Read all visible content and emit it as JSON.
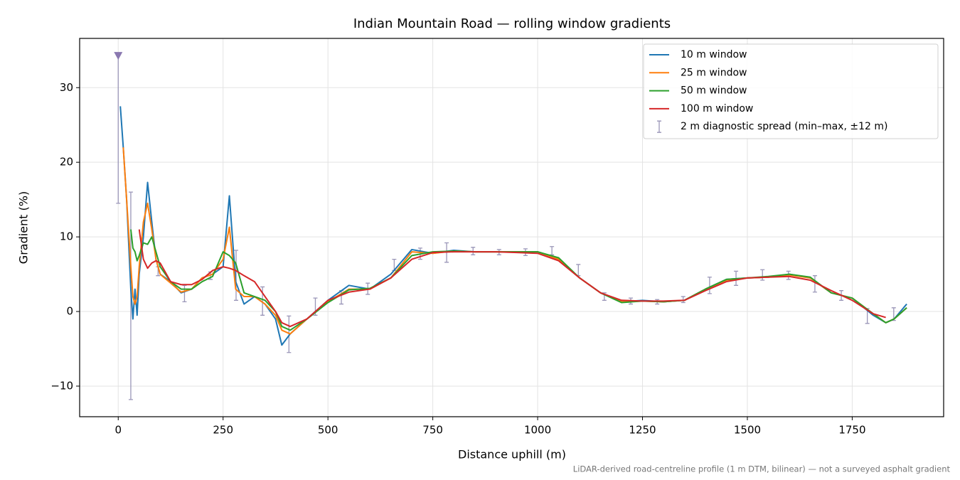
{
  "chart_data": {
    "type": "line",
    "title": "Indian Mountain Road — rolling window gradients",
    "x_label": "Distance uphill (m)",
    "y_label": "Gradient (%)",
    "footnote": "LiDAR-derived road-centreline profile (1 m DTM, bilinear) — not a surveyed asphalt gradient",
    "xlim": [
      -92,
      1968
    ],
    "ylim": [
      -14.1,
      36.6
    ],
    "xticks": [
      0,
      250,
      500,
      750,
      1000,
      1250,
      1500,
      1750
    ],
    "yticks": [
      {
        "value": -10,
        "label": "−10"
      },
      0,
      10,
      20,
      30
    ],
    "grid": true,
    "legend": "upper right",
    "x": [
      5,
      12,
      20,
      30,
      35,
      40,
      45,
      50,
      60,
      70,
      80,
      90,
      100,
      125,
      150,
      175,
      200,
      225,
      250,
      265,
      280,
      300,
      325,
      350,
      375,
      390,
      410,
      450,
      500,
      550,
      600,
      650,
      700,
      750,
      800,
      850,
      900,
      950,
      1000,
      1050,
      1100,
      1150,
      1200,
      1250,
      1300,
      1350,
      1400,
      1450,
      1500,
      1550,
      1600,
      1650,
      1700,
      1750,
      1800,
      1830,
      1850,
      1880
    ],
    "series": [
      {
        "name": "10 m window",
        "color": "#1f77b4",
        "values": [
          27.5,
          22,
          15,
          3,
          -1,
          3,
          -0.5,
          5,
          10,
          17.3,
          12,
          7,
          5,
          4,
          2.5,
          3,
          4.5,
          5,
          6,
          15.5,
          4,
          1,
          2,
          1,
          -1,
          -4.5,
          -3,
          -1,
          1.5,
          3.5,
          3,
          5,
          8.3,
          7.8,
          8.2,
          8,
          8,
          8,
          8,
          7,
          4.5,
          2.5,
          1.3,
          1.5,
          1.3,
          1.5,
          3,
          4.3,
          4.5,
          4.6,
          5,
          4.5,
          2.5,
          1.8,
          -0.5,
          -1.5,
          -1,
          1
        ]
      },
      {
        "name": "25 m window",
        "color": "#ff7f0e",
        "values": [
          null,
          22,
          15,
          6,
          2,
          1,
          2,
          6,
          12,
          14.5,
          11,
          7,
          5,
          3.8,
          2.6,
          3,
          4.5,
          5,
          7,
          11.3,
          3,
          2,
          2,
          1,
          -0.5,
          -2.5,
          -3,
          -1,
          1.3,
          3,
          3,
          4.5,
          8,
          7.8,
          8.1,
          8,
          8,
          8,
          8,
          7,
          4.5,
          2.5,
          1.3,
          1.4,
          1.3,
          1.5,
          3,
          4.2,
          4.5,
          4.6,
          4.9,
          4.5,
          2.5,
          1.8,
          -0.3,
          -1.5,
          -1,
          0.5
        ]
      },
      {
        "name": "50 m window",
        "color": "#2ca02c",
        "values": [
          null,
          null,
          null,
          11,
          8.5,
          8,
          6.8,
          7.5,
          9.2,
          9,
          10,
          8,
          6,
          4,
          3,
          3,
          4,
          4.7,
          8,
          7.5,
          6.5,
          2.5,
          2,
          1.5,
          0,
          -2,
          -2.5,
          -1,
          1.2,
          2.9,
          3.1,
          4.5,
          7.5,
          8,
          8.1,
          8,
          8,
          8,
          8,
          7.2,
          4.5,
          2.5,
          1.2,
          1.4,
          1.3,
          1.5,
          3,
          4.3,
          4.5,
          4.7,
          5,
          4.6,
          2.5,
          1.8,
          -0.3,
          -1.5,
          -1,
          0.5
        ]
      },
      {
        "name": "100 m window",
        "color": "#d62728",
        "values": [
          null,
          null,
          null,
          null,
          null,
          null,
          null,
          11,
          7,
          5.8,
          6.5,
          6.8,
          6.5,
          4,
          3.6,
          3.6,
          4.3,
          5.5,
          6,
          5.8,
          5.5,
          4.8,
          4,
          2,
          0,
          -1.5,
          -2,
          -1,
          1.5,
          2.6,
          3,
          4.5,
          7,
          7.9,
          8,
          8,
          8,
          7.9,
          7.8,
          6.8,
          4.5,
          2.5,
          1.5,
          1.4,
          1.4,
          1.5,
          2.8,
          4,
          4.5,
          4.6,
          4.7,
          4.2,
          2.8,
          1.5,
          -0.3,
          -0.8,
          null,
          null
        ]
      }
    ],
    "errorbars": {
      "name": "2 m diagnostic spread (min–max, ±12 m)",
      "color": "#9a96b8",
      "x": [
        0,
        30,
        95,
        158,
        220,
        281,
        344,
        407,
        470,
        532,
        595,
        658,
        720,
        783,
        846,
        908,
        971,
        1034,
        1097,
        1159,
        1222,
        1285,
        1347,
        1410,
        1473,
        1536,
        1598,
        1661,
        1724,
        1786,
        1849
      ],
      "lower": [
        14.5,
        -11.8,
        4.8,
        1.3,
        4.3,
        1.5,
        -0.5,
        -5.5,
        -0.5,
        1,
        2.3,
        5.5,
        7,
        6.6,
        7.6,
        7.6,
        7.5,
        7.6,
        4.8,
        1.5,
        1,
        1,
        1.2,
        2.4,
        3.5,
        4.2,
        4.3,
        2.6,
        1.5,
        -1.6,
        -1.2
      ],
      "upper": [
        34.3,
        16,
        6,
        3.5,
        5.3,
        8.2,
        3.3,
        -0.6,
        1.8,
        2.8,
        3.8,
        7,
        8.5,
        9.2,
        8.6,
        8.3,
        8.4,
        8.7,
        6.3,
        2.5,
        1.8,
        1.6,
        2,
        4.6,
        5.4,
        5.6,
        5.4,
        4.8,
        2.8,
        0.4,
        0.5
      ]
    },
    "marker": {
      "x": 0,
      "y": 34.3,
      "color": "#8a78b0"
    }
  }
}
